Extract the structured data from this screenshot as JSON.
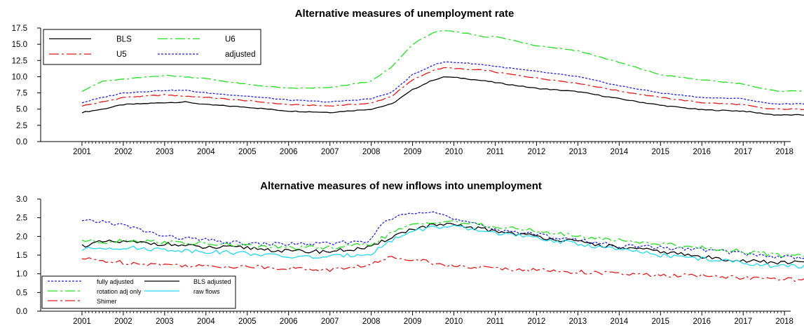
{
  "chart_data": [
    {
      "type": "line",
      "title": "Alternative measures of unemployment rate",
      "x_start": 2001.0,
      "x_step_months": 1,
      "xticks": [
        "2001",
        "2002",
        "2003",
        "2004",
        "2005",
        "2006",
        "2007",
        "2008",
        "2009",
        "2010",
        "2011",
        "2012",
        "2013",
        "2014",
        "2015",
        "2016",
        "2017",
        "2018"
      ],
      "ylim": [
        0,
        17.5
      ],
      "yticks": [
        "0.0",
        "2.5",
        "5.0",
        "7.5",
        "10.0",
        "12.5",
        "15.0",
        "17.5"
      ],
      "legend_position": "top-left",
      "series": [
        {
          "name": "BLS",
          "color": "#000000",
          "dash": "solid",
          "knots": [
            [
              2001.0,
              4.5
            ],
            [
              2001.5,
              5.0
            ],
            [
              2002.0,
              5.7
            ],
            [
              2003.0,
              6.0
            ],
            [
              2003.5,
              6.1
            ],
            [
              2004.0,
              5.7
            ],
            [
              2005.0,
              5.3
            ],
            [
              2006.0,
              4.7
            ],
            [
              2007.0,
              4.5
            ],
            [
              2008.0,
              5.0
            ],
            [
              2008.5,
              5.8
            ],
            [
              2009.0,
              8.0
            ],
            [
              2009.5,
              9.5
            ],
            [
              2009.8,
              10.0
            ],
            [
              2010.3,
              9.7
            ],
            [
              2010.8,
              9.3
            ],
            [
              2011.0,
              9.1
            ],
            [
              2012.0,
              8.2
            ],
            [
              2013.0,
              7.7
            ],
            [
              2014.0,
              6.6
            ],
            [
              2015.0,
              5.6
            ],
            [
              2016.0,
              4.9
            ],
            [
              2017.0,
              4.7
            ],
            [
              2017.5,
              4.3
            ],
            [
              2017.8,
              4.1
            ]
          ]
        },
        {
          "name": "U5",
          "color": "#e31a1c",
          "dash": "dashdot",
          "knots": [
            [
              2001.0,
              5.5
            ],
            [
              2001.5,
              6.1
            ],
            [
              2002.0,
              6.8
            ],
            [
              2003.0,
              7.2
            ],
            [
              2003.5,
              7.0
            ],
            [
              2004.0,
              6.8
            ],
            [
              2005.0,
              6.3
            ],
            [
              2006.0,
              5.7
            ],
            [
              2007.0,
              5.5
            ],
            [
              2008.0,
              5.9
            ],
            [
              2008.5,
              7.0
            ],
            [
              2009.0,
              9.5
            ],
            [
              2009.5,
              11.0
            ],
            [
              2009.8,
              11.4
            ],
            [
              2010.3,
              11.1
            ],
            [
              2010.8,
              11.0
            ],
            [
              2011.0,
              10.7
            ],
            [
              2012.0,
              9.8
            ],
            [
              2013.0,
              9.0
            ],
            [
              2014.0,
              7.8
            ],
            [
              2015.0,
              6.8
            ],
            [
              2016.0,
              6.0
            ],
            [
              2017.0,
              5.7
            ],
            [
              2017.5,
              5.1
            ],
            [
              2017.8,
              5.0
            ]
          ]
        },
        {
          "name": "U6",
          "color": "#22e022",
          "dash": "dashdot",
          "knots": [
            [
              2001.0,
              7.8
            ],
            [
              2001.5,
              9.3
            ],
            [
              2002.0,
              9.6
            ],
            [
              2003.0,
              10.2
            ],
            [
              2003.5,
              10.0
            ],
            [
              2004.0,
              9.7
            ],
            [
              2005.0,
              8.8
            ],
            [
              2006.0,
              8.2
            ],
            [
              2007.0,
              8.3
            ],
            [
              2008.0,
              9.3
            ],
            [
              2008.5,
              11.5
            ],
            [
              2009.0,
              15.0
            ],
            [
              2009.5,
              16.8
            ],
            [
              2009.8,
              17.1
            ],
            [
              2010.3,
              16.7
            ],
            [
              2010.8,
              16.1
            ],
            [
              2011.0,
              16.2
            ],
            [
              2012.0,
              14.8
            ],
            [
              2013.0,
              14.0
            ],
            [
              2014.0,
              12.2
            ],
            [
              2015.0,
              10.3
            ],
            [
              2016.0,
              9.5
            ],
            [
              2017.0,
              8.9
            ],
            [
              2017.5,
              8.1
            ],
            [
              2017.8,
              7.8
            ]
          ]
        },
        {
          "name": "adjusted",
          "color": "#2020e0",
          "dash": "dotted",
          "knots": [
            [
              2001.0,
              6.0
            ],
            [
              2001.5,
              6.8
            ],
            [
              2002.0,
              7.5
            ],
            [
              2003.0,
              7.9
            ],
            [
              2003.5,
              7.9
            ],
            [
              2004.0,
              7.5
            ],
            [
              2005.0,
              7.0
            ],
            [
              2006.0,
              6.4
            ],
            [
              2007.0,
              6.1
            ],
            [
              2008.0,
              6.6
            ],
            [
              2008.5,
              7.6
            ],
            [
              2009.0,
              10.3
            ],
            [
              2009.5,
              11.8
            ],
            [
              2009.8,
              12.3
            ],
            [
              2010.3,
              12.1
            ],
            [
              2010.8,
              11.8
            ],
            [
              2011.0,
              11.6
            ],
            [
              2012.0,
              10.8
            ],
            [
              2013.0,
              10.0
            ],
            [
              2014.0,
              8.6
            ],
            [
              2015.0,
              7.5
            ],
            [
              2016.0,
              6.8
            ],
            [
              2017.0,
              6.6
            ],
            [
              2017.5,
              6.0
            ],
            [
              2017.8,
              5.8
            ]
          ]
        }
      ]
    },
    {
      "type": "line",
      "title": "Alternative measures of new inflows into unemployment",
      "x_start": 2001.0,
      "x_step_months": 1,
      "xticks": [
        "2001",
        "2002",
        "2003",
        "2004",
        "2005",
        "2006",
        "2007",
        "2008",
        "2009",
        "2010",
        "2011",
        "2012",
        "2013",
        "2014",
        "2015",
        "2016",
        "2017",
        "2018"
      ],
      "ylim": [
        0,
        3.0
      ],
      "yticks": [
        "0.0",
        "0.5",
        "1.0",
        "1.5",
        "2.0",
        "2.5",
        "3.0"
      ],
      "legend_position": "bottom-left",
      "series": [
        {
          "name": "fully adjusted",
          "color": "#2020e0",
          "dash": "dotted",
          "knots": [
            [
              2001.0,
              2.4
            ],
            [
              2001.5,
              2.4
            ],
            [
              2002.0,
              2.3
            ],
            [
              2003.0,
              2.0
            ],
            [
              2004.0,
              1.9
            ],
            [
              2005.0,
              1.8
            ],
            [
              2006.0,
              1.8
            ],
            [
              2007.0,
              1.8
            ],
            [
              2008.0,
              1.9
            ],
            [
              2008.3,
              2.4
            ],
            [
              2009.0,
              2.65
            ],
            [
              2009.5,
              2.7
            ],
            [
              2010.0,
              2.45
            ],
            [
              2011.0,
              2.2
            ],
            [
              2012.0,
              2.05
            ],
            [
              2013.0,
              1.9
            ],
            [
              2014.0,
              1.75
            ],
            [
              2015.0,
              1.7
            ],
            [
              2016.0,
              1.65
            ],
            [
              2017.0,
              1.55
            ],
            [
              2017.8,
              1.45
            ]
          ]
        },
        {
          "name": "BLS adjusted",
          "color": "#000000",
          "dash": "solid",
          "knots": [
            [
              2001.0,
              1.75
            ],
            [
              2001.5,
              1.85
            ],
            [
              2002.0,
              1.85
            ],
            [
              2003.0,
              1.8
            ],
            [
              2004.0,
              1.7
            ],
            [
              2005.0,
              1.7
            ],
            [
              2006.0,
              1.6
            ],
            [
              2007.0,
              1.6
            ],
            [
              2008.0,
              1.7
            ],
            [
              2008.5,
              2.0
            ],
            [
              2009.0,
              2.2
            ],
            [
              2009.5,
              2.3
            ],
            [
              2010.0,
              2.3
            ],
            [
              2011.0,
              2.15
            ],
            [
              2012.0,
              2.0
            ],
            [
              2013.0,
              1.85
            ],
            [
              2014.0,
              1.7
            ],
            [
              2015.0,
              1.6
            ],
            [
              2016.0,
              1.45
            ],
            [
              2017.0,
              1.35
            ],
            [
              2017.8,
              1.3
            ]
          ]
        },
        {
          "name": "rotation adj only",
          "color": "#22e022",
          "dash": "dashdot",
          "knots": [
            [
              2001.0,
              1.9
            ],
            [
              2001.5,
              1.85
            ],
            [
              2002.0,
              1.9
            ],
            [
              2003.0,
              1.85
            ],
            [
              2004.0,
              1.8
            ],
            [
              2005.0,
              1.75
            ],
            [
              2006.0,
              1.7
            ],
            [
              2007.0,
              1.7
            ],
            [
              2008.0,
              1.8
            ],
            [
              2008.5,
              2.1
            ],
            [
              2009.0,
              2.3
            ],
            [
              2009.5,
              2.4
            ],
            [
              2010.0,
              2.4
            ],
            [
              2011.0,
              2.25
            ],
            [
              2012.0,
              2.15
            ],
            [
              2013.0,
              2.0
            ],
            [
              2014.0,
              1.9
            ],
            [
              2015.0,
              1.8
            ],
            [
              2016.0,
              1.7
            ],
            [
              2017.0,
              1.6
            ],
            [
              2017.8,
              1.5
            ]
          ]
        },
        {
          "name": "raw flows",
          "color": "#22d8f0",
          "dash": "solid",
          "knots": [
            [
              2001.0,
              1.65
            ],
            [
              2001.5,
              1.7
            ],
            [
              2002.0,
              1.7
            ],
            [
              2003.0,
              1.65
            ],
            [
              2004.0,
              1.6
            ],
            [
              2005.0,
              1.55
            ],
            [
              2006.0,
              1.45
            ],
            [
              2007.0,
              1.45
            ],
            [
              2008.0,
              1.55
            ],
            [
              2008.5,
              1.9
            ],
            [
              2009.0,
              2.15
            ],
            [
              2009.5,
              2.25
            ],
            [
              2010.0,
              2.25
            ],
            [
              2011.0,
              2.1
            ],
            [
              2012.0,
              1.95
            ],
            [
              2013.0,
              1.8
            ],
            [
              2014.0,
              1.65
            ],
            [
              2015.0,
              1.5
            ],
            [
              2016.0,
              1.4
            ],
            [
              2017.0,
              1.3
            ],
            [
              2017.8,
              1.2
            ]
          ]
        },
        {
          "name": "Shimer",
          "color": "#e31a1c",
          "dash": "dashdot",
          "knots": [
            [
              2001.0,
              1.4
            ],
            [
              2001.5,
              1.35
            ],
            [
              2002.0,
              1.3
            ],
            [
              2003.0,
              1.25
            ],
            [
              2004.0,
              1.2
            ],
            [
              2005.0,
              1.2
            ],
            [
              2006.0,
              1.15
            ],
            [
              2007.0,
              1.1
            ],
            [
              2008.0,
              1.25
            ],
            [
              2008.5,
              1.45
            ],
            [
              2009.0,
              1.4
            ],
            [
              2009.5,
              1.3
            ],
            [
              2010.0,
              1.2
            ],
            [
              2011.0,
              1.15
            ],
            [
              2012.0,
              1.1
            ],
            [
              2013.0,
              1.05
            ],
            [
              2014.0,
              1.0
            ],
            [
              2015.0,
              0.95
            ],
            [
              2016.0,
              0.95
            ],
            [
              2017.0,
              0.9
            ],
            [
              2017.8,
              0.85
            ]
          ]
        }
      ]
    }
  ]
}
